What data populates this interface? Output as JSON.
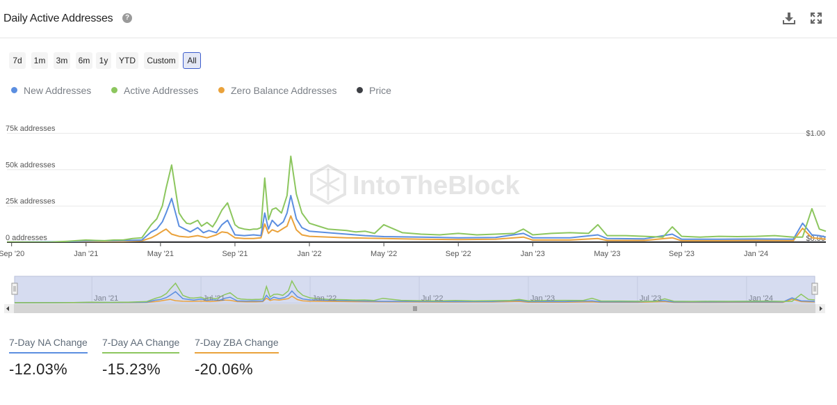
{
  "header": {
    "title": "Daily Active Addresses",
    "help_icon": "question-circle-icon",
    "download_icon": "download-icon",
    "fullscreen_icon": "fullscreen-icon"
  },
  "ranges": [
    {
      "label": "7d",
      "active": false
    },
    {
      "label": "1m",
      "active": false
    },
    {
      "label": "3m",
      "active": false
    },
    {
      "label": "6m",
      "active": false
    },
    {
      "label": "1y",
      "active": false
    },
    {
      "label": "YTD",
      "active": false
    },
    {
      "label": "Custom",
      "active": false
    },
    {
      "label": "All",
      "active": true
    }
  ],
  "legend": [
    {
      "name": "New Addresses",
      "color": "#5b8ee0"
    },
    {
      "name": "Active Addresses",
      "color": "#8cc65e"
    },
    {
      "name": "Zero Balance Addresses",
      "color": "#eaa23b"
    },
    {
      "name": "Price",
      "color": "#3d3f44"
    }
  ],
  "watermark": "IntoTheBlock",
  "chart_data": {
    "type": "line",
    "x_unit": "months since Sep 2020",
    "xlim": [
      -0.25,
      43.75
    ],
    "ylim": [
      0,
      75000
    ],
    "y2lim": [
      0,
      1
    ],
    "yticks": [
      {
        "value": 0,
        "label": "0 addresses"
      },
      {
        "value": 25000,
        "label": "25k addresses"
      },
      {
        "value": 50000,
        "label": "50k addresses"
      },
      {
        "value": 75000,
        "label": "75k addresses"
      }
    ],
    "y2ticks": [
      {
        "value": 0,
        "label": "$0.00"
      },
      {
        "value": 1,
        "label": "$1.00"
      }
    ],
    "xticks": [
      {
        "value": 0,
        "label": "Sep '20"
      },
      {
        "value": 4,
        "label": "Jan '21"
      },
      {
        "value": 8,
        "label": "May '21"
      },
      {
        "value": 12,
        "label": "Sep '21"
      },
      {
        "value": 16,
        "label": "Jan '22"
      },
      {
        "value": 20,
        "label": "May '22"
      },
      {
        "value": 24,
        "label": "Sep '22"
      },
      {
        "value": 28,
        "label": "Jan '23"
      },
      {
        "value": 32,
        "label": "May '23"
      },
      {
        "value": 36,
        "label": "Sep '23"
      },
      {
        "value": 40,
        "label": "Jan '24"
      }
    ],
    "series": [
      {
        "name": "Active Addresses",
        "color": "#8cc65e",
        "x": [
          -0.25,
          2,
          3,
          4,
          4.5,
          5,
          5.5,
          6,
          6.5,
          7,
          7.5,
          7.8,
          8.1,
          8.3,
          8.6,
          9,
          9.2,
          9.4,
          9.6,
          10,
          10.2,
          10.5,
          10.8,
          11,
          11.3,
          11.6,
          12,
          12.2,
          12.5,
          12.8,
          13,
          13.2,
          13.4,
          13.6,
          13.8,
          14,
          14.2,
          14.5,
          14.8,
          15,
          15.3,
          15.6,
          16,
          16.5,
          17,
          17.5,
          18,
          18.5,
          19,
          19.5,
          20,
          21,
          22,
          23,
          24,
          25,
          26,
          27,
          27.5,
          28,
          29,
          30,
          31,
          31.5,
          32,
          33,
          34,
          35,
          35.5,
          36,
          37,
          38,
          39,
          40,
          41,
          42,
          42.5,
          43,
          43.4,
          43.75
        ],
        "values": [
          0,
          0,
          600,
          1500,
          1200,
          1000,
          1500,
          1500,
          2500,
          3000,
          12000,
          16000,
          25000,
          37000,
          53000,
          20000,
          16000,
          13000,
          12500,
          15000,
          11000,
          13500,
          10500,
          14500,
          22000,
          27000,
          12000,
          10000,
          9000,
          8500,
          9000,
          9000,
          10000,
          44000,
          15500,
          22500,
          23500,
          20000,
          32000,
          59000,
          33000,
          20000,
          13000,
          11000,
          9000,
          8500,
          8000,
          7000,
          7500,
          6000,
          12000,
          6500,
          5500,
          5000,
          6000,
          5000,
          5500,
          6000,
          9000,
          5000,
          6000,
          6500,
          6000,
          12000,
          4500,
          4500,
          4000,
          3500,
          10500,
          4000,
          3500,
          4000,
          3800,
          4000,
          4500,
          3500,
          3500,
          23000,
          9000,
          7500
        ]
      },
      {
        "name": "New Addresses",
        "color": "#5b8ee0",
        "x": [
          -0.25,
          3,
          4,
          5,
          6,
          7,
          7.5,
          7.8,
          8.1,
          8.3,
          8.6,
          9,
          9.3,
          9.6,
          10,
          10.3,
          10.6,
          11,
          11.3,
          11.6,
          12,
          12.5,
          13,
          13.4,
          13.6,
          13.8,
          14,
          14.3,
          14.6,
          14.8,
          15,
          15.3,
          15.6,
          16,
          17,
          18,
          19,
          20,
          22,
          24,
          26,
          27.5,
          28,
          30,
          31.5,
          32,
          34,
          35.5,
          36,
          38,
          40,
          42,
          42.5,
          43,
          43.4,
          43.75
        ],
        "values": [
          0,
          400,
          800,
          800,
          1000,
          1500,
          7000,
          9000,
          14000,
          20000,
          30000,
          11000,
          9000,
          7000,
          10000,
          6500,
          8000,
          6500,
          12000,
          15000,
          5000,
          4500,
          5000,
          4500,
          20000,
          9000,
          15000,
          11000,
          14000,
          20000,
          32000,
          16000,
          10000,
          7500,
          6500,
          5500,
          4500,
          3800,
          3500,
          3000,
          3200,
          6000,
          3000,
          3000,
          5000,
          2500,
          2300,
          5500,
          2000,
          2000,
          2200,
          2000,
          13000,
          5000,
          4500,
          3500
        ]
      },
      {
        "name": "Zero Balance Addresses",
        "color": "#eaa23b",
        "x": [
          -0.25,
          4,
          6,
          7,
          7.5,
          7.8,
          8.1,
          8.3,
          8.6,
          9,
          9.5,
          10,
          10.5,
          11,
          11.3,
          11.6,
          12,
          12.5,
          13,
          13.4,
          13.6,
          13.8,
          14,
          14.3,
          14.6,
          14.8,
          15,
          15.3,
          15.6,
          16,
          18,
          20,
          22,
          24,
          26,
          27.5,
          28,
          30,
          31.5,
          32,
          34,
          35.5,
          36,
          38,
          40,
          42,
          42.5,
          43,
          43.4,
          43.75
        ],
        "values": [
          0,
          200,
          500,
          1000,
          3000,
          5000,
          7500,
          9000,
          5500,
          4000,
          3500,
          4500,
          3000,
          5000,
          7000,
          6500,
          3000,
          2500,
          2500,
          3000,
          12500,
          6000,
          8500,
          7000,
          9500,
          11000,
          18000,
          8500,
          5000,
          4000,
          3000,
          2500,
          2000,
          1800,
          2000,
          3500,
          1500,
          1500,
          2500,
          1200,
          1200,
          3000,
          1000,
          1000,
          1200,
          1000,
          9500,
          3000,
          2500,
          2000
        ]
      },
      {
        "name": "Price",
        "color": "#3d3f44",
        "x": [
          -0.25,
          43.75
        ],
        "values": [
          0.002,
          0.002
        ],
        "axis": "right"
      }
    ],
    "navigator": {
      "xticks": [
        {
          "value": 4,
          "label": "Jan '21"
        },
        {
          "value": 10,
          "label": "Jul '21"
        },
        {
          "value": 16,
          "label": "Jan '22"
        },
        {
          "value": 22,
          "label": "Jul '22"
        },
        {
          "value": 28,
          "label": "Jan '23"
        },
        {
          "value": 34,
          "label": "Jul '23"
        },
        {
          "value": 40,
          "label": "Jan '24"
        }
      ]
    }
  },
  "stats": [
    {
      "label": "7-Day NA Change",
      "value": "-12.03%",
      "color": "#5b8ee0"
    },
    {
      "label": "7-Day AA Change",
      "value": "-15.23%",
      "color": "#8cc65e"
    },
    {
      "label": "7-Day ZBA Change",
      "value": "-20.06%",
      "color": "#eaa23b"
    }
  ]
}
